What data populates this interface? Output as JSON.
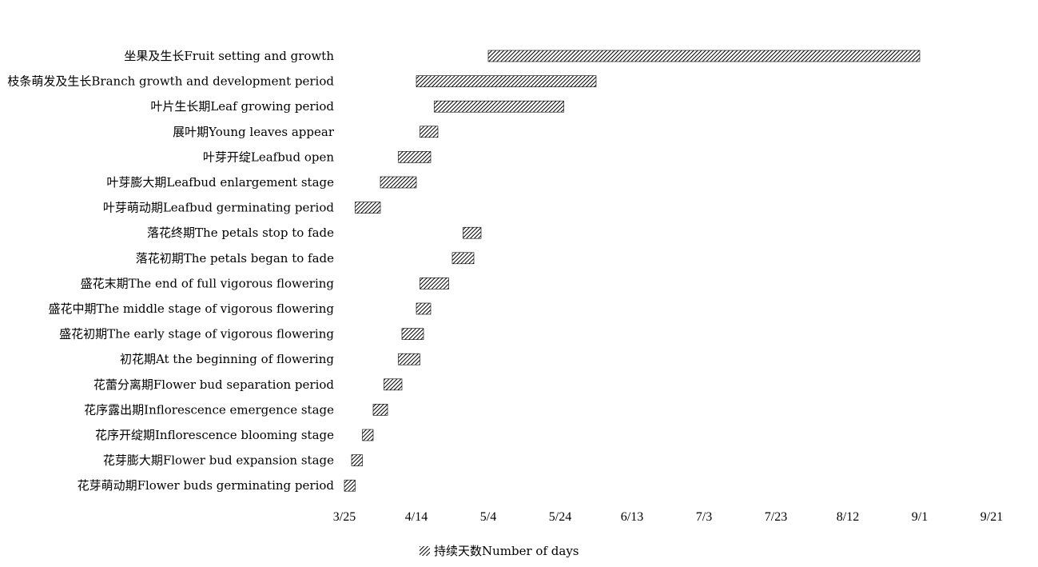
{
  "chart_data": {
    "type": "bar",
    "orientation": "horizontal",
    "stacked_gantt": true,
    "x_ticks": [
      "3/25",
      "4/14",
      "5/4",
      "5/24",
      "6/13",
      "7/3",
      "7/23",
      "8/12",
      "9/1",
      "9/21"
    ],
    "x_tick_days": [
      0,
      20,
      40,
      60,
      80,
      100,
      120,
      140,
      160,
      180
    ],
    "x_range_days": [
      0,
      180
    ],
    "legend": "持续天数Number of days",
    "legend_position": "bottom",
    "grid": false,
    "categories": [
      "坐果及生长Fruit setting and growth",
      "枝条萌发及生长Branch growth and development period",
      "叶片生长期Leaf growing period",
      "展叶期Young leaves appear",
      "叶芽开绽Leafbud open",
      "叶芽膨大期Leafbud enlargement stage",
      "叶芽萌动期Leafbud germinating period",
      "落花终期The petals stop to fade",
      "落花初期The petals began to fade",
      "盛花末期The end of full vigorous flowering",
      "盛花中期The middle stage of vigorous flowering",
      "盛花初期The early stage of vigorous flowering",
      "初花期At the beginning of flowering",
      "花蕾分离期Flower bud separation period",
      "花序露出期Inflorescence emergence stage",
      "花序开绽期Inflorescence blooming stage",
      "花芽膨大期Flower bud expansion stage",
      "花芽萌动期Flower buds germinating period"
    ],
    "start_date": [
      "5/4",
      "4/14",
      "4/19",
      "4/15",
      "4/9",
      "4/4",
      "3/28",
      "4/27",
      "4/24",
      "4/15",
      "4/14",
      "4/10",
      "4/9",
      "4/5",
      "4/2",
      "3/30",
      "3/27",
      "3/25"
    ],
    "duration_days": [
      120,
      50,
      36,
      5,
      9,
      10,
      7,
      5,
      6,
      8,
      4,
      6,
      6,
      5,
      4,
      3,
      3,
      3
    ]
  }
}
